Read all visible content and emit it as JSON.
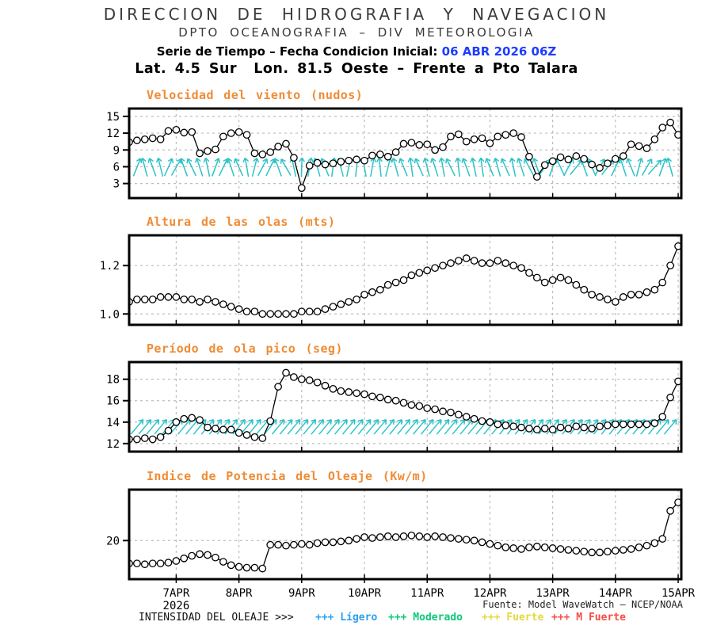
{
  "header": {
    "line1": "DIRECCION DE HIDROGRAFIA Y NAVEGACION",
    "line2": "DPTO OCEANOGRAFIA – DIV METEOROLOGIA",
    "line3_prefix": "Serie de Tiempo – Fecha Condicion Inicial: ",
    "line3_value": "06 ABR 2026 06Z",
    "line3_value_color": "#1e3cff",
    "line4": "Lat. 4.5 Sur  Lon. 81.5 Oeste – Frente a Pto Talara"
  },
  "x_axis": {
    "labels": [
      "7APR",
      "8APR",
      "9APR",
      "10APR",
      "11APR",
      "12APR",
      "13APR",
      "14APR",
      "15APR"
    ],
    "tick_days": [
      7,
      8,
      9,
      10,
      11,
      12,
      13,
      14,
      15
    ],
    "year": "2026",
    "t_start_days": 6.25,
    "t_end_days": 15.05,
    "step_days": 0.125
  },
  "chart_data": {
    "type": "line",
    "x_description": "3-hourly time steps from 06 ABR 2026 06Z to 15 ABR 2026",
    "charts": [
      {
        "title": "Velocidad del viento (nudos)",
        "ylabel": "nudos",
        "y_ticks": [
          3,
          6,
          9,
          12,
          15
        ],
        "tick_labels": [
          "3",
          "6",
          "9",
          "12",
          "15"
        ],
        "y_range": [
          0.4,
          16.4
        ],
        "values": [
          10.4,
          10.7,
          10.9,
          11.1,
          10.9,
          12.4,
          12.6,
          12.1,
          12.2,
          8.4,
          8.8,
          9.1,
          11.4,
          12.0,
          12.2,
          11.7,
          8.4,
          8.2,
          8.6,
          9.6,
          10.1,
          7.6,
          2.2,
          6.2,
          6.7,
          6.4,
          6.6,
          6.9,
          7.1,
          7.3,
          7.1,
          8.0,
          8.2,
          7.8,
          8.6,
          10.1,
          10.3,
          9.9,
          10.0,
          9.0,
          9.5,
          11.4,
          11.8,
          10.5,
          10.9,
          11.1,
          10.2,
          11.4,
          11.7,
          12.0,
          11.3,
          7.8,
          4.2,
          6.3,
          7.0,
          7.7,
          7.3,
          7.9,
          7.4,
          6.4,
          5.8,
          6.6,
          7.4,
          7.9,
          10.0,
          9.7,
          9.3,
          10.9,
          13.0,
          13.9,
          11.7
        ],
        "arrows": {
          "color": "#2cc3c6",
          "band_center": 5.9,
          "angles": [
            18,
            22,
            -15,
            -20,
            -14,
            24,
            30,
            -20,
            -26,
            -18,
            -12,
            20,
            26,
            -18,
            -24,
            -10,
            14,
            28,
            26,
            -20,
            -30,
            -12,
            2,
            10,
            -16,
            -22,
            8,
            -14,
            12,
            6,
            -10,
            10,
            -6,
            14,
            -16,
            -22,
            -8,
            -24,
            -14,
            -18,
            -10,
            -26,
            -6,
            -20,
            -12,
            -8,
            -22,
            -16,
            -24,
            -12,
            -18,
            -28,
            -20,
            35,
            20,
            -25,
            28,
            40,
            -20,
            -24,
            30,
            38,
            25,
            -18,
            -22,
            15,
            30,
            42,
            20,
            -15,
            25
          ]
        }
      },
      {
        "title": "Altura de las olas (mts)",
        "ylabel": "mts",
        "y_ticks": [
          1.0,
          1.2
        ],
        "tick_labels": [
          "1.0",
          "1.2"
        ],
        "y_range": [
          0.955,
          1.325
        ],
        "values": [
          1.05,
          1.06,
          1.06,
          1.06,
          1.07,
          1.07,
          1.07,
          1.06,
          1.06,
          1.05,
          1.06,
          1.05,
          1.04,
          1.03,
          1.02,
          1.01,
          1.01,
          1.0,
          1.0,
          1.0,
          1.0,
          1.0,
          1.01,
          1.01,
          1.01,
          1.02,
          1.03,
          1.04,
          1.05,
          1.06,
          1.08,
          1.09,
          1.1,
          1.12,
          1.13,
          1.14,
          1.16,
          1.17,
          1.18,
          1.19,
          1.2,
          1.21,
          1.22,
          1.23,
          1.22,
          1.21,
          1.21,
          1.22,
          1.21,
          1.2,
          1.19,
          1.17,
          1.15,
          1.13,
          1.14,
          1.15,
          1.14,
          1.12,
          1.1,
          1.08,
          1.07,
          1.06,
          1.05,
          1.07,
          1.08,
          1.08,
          1.09,
          1.1,
          1.13,
          1.2,
          1.28
        ]
      },
      {
        "title": "Período de ola pico (seg)",
        "ylabel": "seg",
        "y_ticks": [
          12,
          14,
          16,
          18
        ],
        "tick_labels": [
          "12",
          "14",
          "16",
          "18"
        ],
        "y_range": [
          11.25,
          19.6
        ],
        "values": [
          12.4,
          12.4,
          12.5,
          12.4,
          12.6,
          13.2,
          14.0,
          14.3,
          14.4,
          14.2,
          13.5,
          13.4,
          13.3,
          13.3,
          13.0,
          12.8,
          12.6,
          12.5,
          14.1,
          17.3,
          18.6,
          18.2,
          18.0,
          17.9,
          17.7,
          17.4,
          17.1,
          16.9,
          16.8,
          16.7,
          16.6,
          16.4,
          16.3,
          16.1,
          16.0,
          15.8,
          15.6,
          15.5,
          15.3,
          15.2,
          15.0,
          14.9,
          14.7,
          14.5,
          14.3,
          14.1,
          14.0,
          13.8,
          13.7,
          13.6,
          13.5,
          13.4,
          13.3,
          13.4,
          13.3,
          13.5,
          13.4,
          13.6,
          13.5,
          13.4,
          13.6,
          13.7,
          13.8,
          13.8,
          13.8,
          13.8,
          13.8,
          13.9,
          14.5,
          16.3,
          17.8
        ],
        "arrows": {
          "color": "#2cc3c6",
          "band_center": 13.55,
          "uniform_angle": 40
        }
      },
      {
        "title": "Indice de Potencia del Oleaje (Kw/m)",
        "ylabel": "Kw/m",
        "y_ticks": [
          20
        ],
        "tick_labels": [
          "20"
        ],
        "y_range": [
          15.45,
          26.0
        ],
        "values": [
          17.3,
          17.3,
          17.2,
          17.3,
          17.3,
          17.4,
          17.6,
          17.9,
          18.2,
          18.4,
          18.3,
          18.0,
          17.5,
          17.1,
          16.9,
          16.8,
          16.8,
          16.7,
          19.5,
          19.5,
          19.4,
          19.5,
          19.6,
          19.5,
          19.7,
          19.8,
          19.8,
          19.9,
          20.0,
          20.2,
          20.4,
          20.3,
          20.4,
          20.5,
          20.4,
          20.5,
          20.6,
          20.5,
          20.4,
          20.5,
          20.4,
          20.3,
          20.2,
          20.1,
          20.0,
          19.8,
          19.6,
          19.4,
          19.2,
          19.1,
          19.0,
          19.2,
          19.3,
          19.2,
          19.1,
          19.0,
          18.9,
          18.8,
          18.7,
          18.6,
          18.6,
          18.7,
          18.8,
          18.9,
          19.0,
          19.2,
          19.4,
          19.7,
          20.2,
          23.5,
          24.5
        ]
      }
    ]
  },
  "footer": {
    "source": "Fuente: Model WaveWatch – NCEP/NOAA",
    "legend_prefix": "INTENSIDAD DEL OLEAJE >>>",
    "legend": [
      {
        "marker": "+++",
        "label": "Lígero",
        "color": "#2b9ff2"
      },
      {
        "marker": "+++",
        "label": "Moderado",
        "color": "#0bc878"
      },
      {
        "marker": "+++",
        "label": "Fuerte",
        "color": "#e3d93c"
      },
      {
        "marker": "+++",
        "label": "M Fuerte",
        "color": "#fa4a42"
      }
    ]
  },
  "colors": {
    "title_orange": "#ef8c35",
    "arrow_cyan": "#2cc3c6",
    "grid": "#bdbdbd",
    "line": "#000000",
    "marker_fill": "#ffffff"
  }
}
